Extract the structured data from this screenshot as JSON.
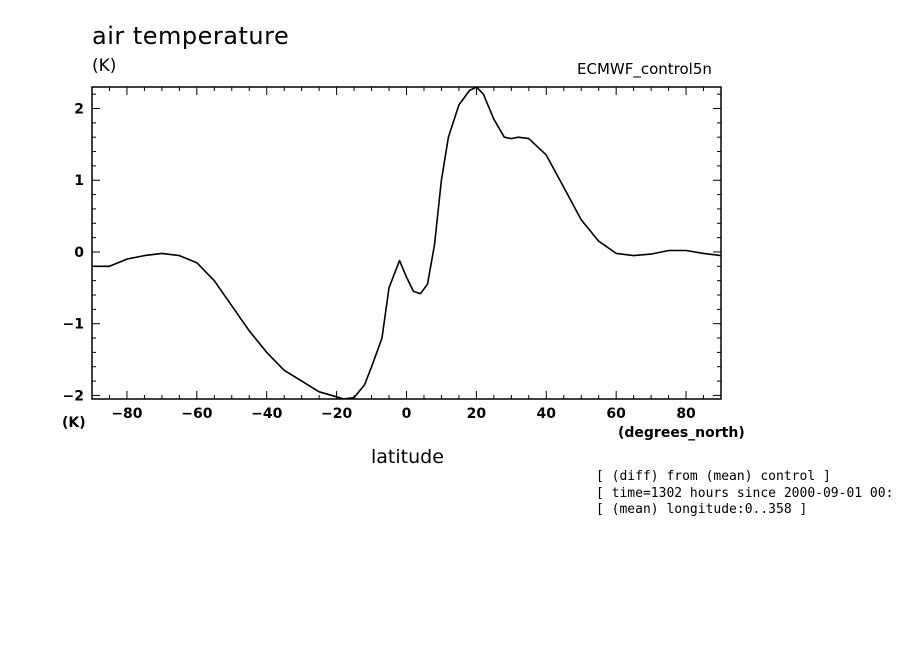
{
  "chart_data": {
    "type": "line",
    "title": "air temperature",
    "ylabel": "(K)",
    "ylabel_bottom": "(K)",
    "xlabel": "latitude",
    "x_units": "(degrees_north)",
    "source_label": "ECMWF_control5n",
    "notes": [
      "[ (diff) from (mean) control ]",
      "[ time=1302 hours since 2000-09-01 00:",
      "[ (mean) longitude:0..358 ]"
    ],
    "xlim": [
      -90,
      90
    ],
    "ylim": [
      -2.05,
      2.3
    ],
    "x_ticks": [
      -80,
      -60,
      -40,
      -20,
      0,
      20,
      40,
      60,
      80
    ],
    "y_ticks": [
      -2,
      -1,
      0,
      1,
      2
    ],
    "grid": false,
    "series": [
      {
        "color": "#000000",
        "x": [
          -90,
          -85,
          -80,
          -75,
          -70,
          -65,
          -60,
          -55,
          -50,
          -45,
          -40,
          -35,
          -30,
          -25,
          -20,
          -18,
          -15,
          -12,
          -10,
          -7,
          -5,
          -2,
          0,
          2,
          4,
          6,
          8,
          10,
          12,
          15,
          18,
          20,
          22,
          25,
          28,
          30,
          32,
          35,
          40,
          45,
          50,
          55,
          60,
          65,
          70,
          75,
          80,
          85,
          90
        ],
        "y": [
          -0.2,
          -0.2,
          -0.1,
          -0.05,
          -0.02,
          -0.05,
          -0.15,
          -0.4,
          -0.75,
          -1.1,
          -1.4,
          -1.65,
          -1.8,
          -1.95,
          -2.02,
          -2.05,
          -2.03,
          -1.85,
          -1.6,
          -1.2,
          -0.5,
          -0.12,
          -0.35,
          -0.55,
          -0.58,
          -0.45,
          0.1,
          1.0,
          1.6,
          2.05,
          2.25,
          2.3,
          2.2,
          1.85,
          1.6,
          1.58,
          1.6,
          1.58,
          1.35,
          0.9,
          0.45,
          0.15,
          -0.02,
          -0.05,
          -0.03,
          0.02,
          0.02,
          -0.02,
          -0.05
        ]
      }
    ]
  }
}
